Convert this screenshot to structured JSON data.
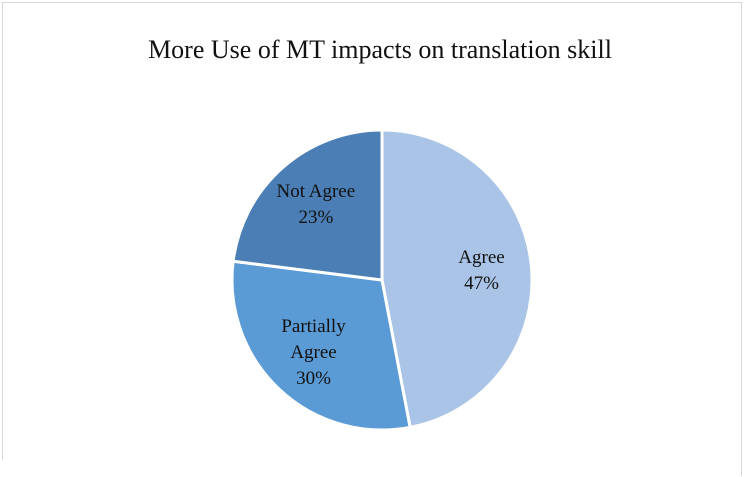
{
  "chart_data": {
    "type": "pie",
    "title": "More Use of MT impacts on translation skill",
    "categories": [
      "Agree",
      "Partially Agree",
      "Not Agree"
    ],
    "values": [
      47,
      30,
      23
    ],
    "value_labels": [
      "47%",
      "30%",
      "23%"
    ],
    "colors": [
      "#a9c4e6",
      "#5b9bd5",
      "#4a7eb4"
    ]
  }
}
